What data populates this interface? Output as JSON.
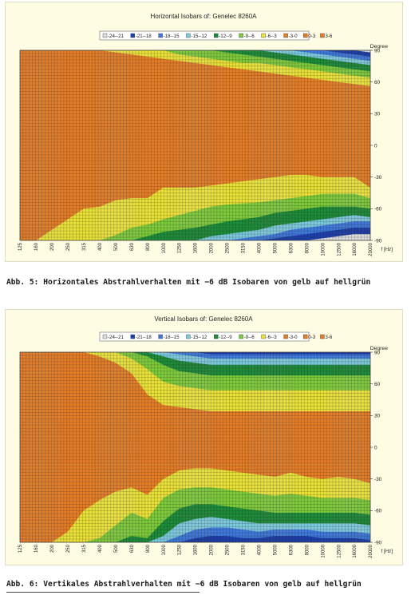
{
  "colors": {
    "s2421": "#dcdcdc",
    "s2118": "#1f3fa8",
    "s1815": "#3f78d8",
    "s1512": "#7ec8dc",
    "s129": "#1f8a3a",
    "s96": "#7ec83e",
    "s63": "#e8e03c",
    "s30": "#e27d2a",
    "s03": "#e27d2a",
    "s36": "#e27d2a",
    "grid": "#222222"
  },
  "legend": [
    {
      "key": "s2421",
      "label": "-24--21"
    },
    {
      "key": "s2118",
      "label": "-21--18"
    },
    {
      "key": "s1815",
      "label": "-18--15"
    },
    {
      "key": "s1512",
      "label": "-15--12"
    },
    {
      "key": "s129",
      "label": "-12--9"
    },
    {
      "key": "s96",
      "label": "-9--6"
    },
    {
      "key": "s63",
      "label": "-6--3"
    },
    {
      "key": "s30",
      "label": "-3-0"
    },
    {
      "key": "s03",
      "label": "0-3"
    },
    {
      "key": "s36",
      "label": "3-6"
    }
  ],
  "captions": {
    "fig5": "Abb. 5: Horizontales Abstrahlverhalten mit −6 dB Isobaren von gelb auf hellgrün",
    "fig6": "Abb. 6: Vertikales Abstrahlverhalten mit −6 dB Isobaren von gelb auf hellgrün"
  },
  "chart_data": [
    {
      "type": "heatmap",
      "title": "Horizontal Isobars of:   Genelec  8260A",
      "xlabel": "f [Hz]",
      "ylabel": "Degree",
      "x_ticks": [
        "125",
        "160",
        "200",
        "250",
        "315",
        "400",
        "500",
        "630",
        "800",
        "1000",
        "1250",
        "1600",
        "2000",
        "2500",
        "3150",
        "4000",
        "5000",
        "6300",
        "8000",
        "10000",
        "12500",
        "16000",
        "20000"
      ],
      "y_ticks": [
        90,
        60,
        30,
        0,
        -30,
        -60,
        -90
      ],
      "ylim": [
        -90,
        90
      ],
      "legend_position": "top",
      "grid": true,
      "x": [
        125,
        160,
        200,
        250,
        315,
        400,
        500,
        630,
        800,
        1000,
        1250,
        1600,
        2000,
        2500,
        3150,
        4000,
        5000,
        6300,
        8000,
        10000,
        12500,
        16000,
        20000
      ],
      "contours_dB": [
        -3,
        -6,
        -9,
        -12,
        -15,
        -18,
        -21
      ],
      "upper_boundaries_deg": [
        [
          90,
          90,
          90,
          90,
          90,
          90,
          88,
          86,
          84,
          82,
          80,
          78,
          76,
          74,
          72,
          70,
          68,
          66,
          64,
          62,
          60,
          58,
          56
        ],
        [
          90,
          90,
          90,
          90,
          90,
          90,
          90,
          90,
          90,
          90,
          86,
          84,
          82,
          80,
          78,
          78,
          76,
          74,
          72,
          70,
          68,
          66,
          64
        ],
        [
          90,
          90,
          90,
          90,
          90,
          90,
          90,
          90,
          90,
          90,
          90,
          90,
          90,
          88,
          86,
          84,
          82,
          80,
          78,
          76,
          74,
          72,
          70
        ],
        [
          90,
          90,
          90,
          90,
          90,
          90,
          90,
          90,
          90,
          90,
          90,
          90,
          90,
          90,
          90,
          90,
          88,
          86,
          84,
          82,
          80,
          78,
          76
        ],
        [
          90,
          90,
          90,
          90,
          90,
          90,
          90,
          90,
          90,
          90,
          90,
          90,
          90,
          90,
          90,
          90,
          90,
          90,
          88,
          86,
          84,
          82,
          80
        ],
        [
          90,
          90,
          90,
          90,
          90,
          90,
          90,
          90,
          90,
          90,
          90,
          90,
          90,
          90,
          90,
          90,
          90,
          90,
          90,
          90,
          88,
          86,
          84
        ],
        [
          90,
          90,
          90,
          90,
          90,
          90,
          90,
          90,
          90,
          90,
          90,
          90,
          90,
          90,
          90,
          90,
          90,
          90,
          90,
          90,
          90,
          90,
          88
        ]
      ],
      "lower_boundaries_deg": [
        [
          -90,
          -90,
          -80,
          -70,
          -60,
          -58,
          -52,
          -50,
          -50,
          -40,
          -40,
          -40,
          -38,
          -36,
          -34,
          -32,
          -30,
          -28,
          -28,
          -30,
          -30,
          -30,
          -40
        ],
        [
          -90,
          -90,
          -90,
          -90,
          -90,
          -90,
          -85,
          -78,
          -75,
          -70,
          -66,
          -62,
          -58,
          -56,
          -55,
          -54,
          -52,
          -50,
          -48,
          -46,
          -46,
          -46,
          -50
        ],
        [
          -90,
          -90,
          -90,
          -90,
          -90,
          -90,
          -90,
          -90,
          -86,
          -82,
          -80,
          -78,
          -75,
          -72,
          -70,
          -68,
          -64,
          -62,
          -60,
          -58,
          -58,
          -58,
          -60
        ],
        [
          -90,
          -90,
          -90,
          -90,
          -90,
          -90,
          -90,
          -90,
          -90,
          -90,
          -90,
          -90,
          -86,
          -84,
          -82,
          -80,
          -76,
          -74,
          -72,
          -70,
          -68,
          -66,
          -68
        ],
        [
          -90,
          -90,
          -90,
          -90,
          -90,
          -90,
          -90,
          -90,
          -90,
          -90,
          -90,
          -90,
          -90,
          -90,
          -88,
          -86,
          -84,
          -80,
          -78,
          -76,
          -74,
          -72,
          -72
        ],
        [
          -90,
          -90,
          -90,
          -90,
          -90,
          -90,
          -90,
          -90,
          -90,
          -90,
          -90,
          -90,
          -90,
          -90,
          -90,
          -90,
          -88,
          -86,
          -84,
          -82,
          -80,
          -78,
          -78
        ],
        [
          -90,
          -90,
          -90,
          -90,
          -90,
          -90,
          -90,
          -90,
          -90,
          -90,
          -90,
          -90,
          -90,
          -90,
          -90,
          -90,
          -90,
          -90,
          -90,
          -88,
          -86,
          -84,
          -84
        ]
      ]
    },
    {
      "type": "heatmap",
      "title": "Vertical Isobars of:   Genelec  8260A",
      "xlabel": "f [Hz]",
      "ylabel": "Degree",
      "x_ticks": [
        "125",
        "160",
        "200",
        "250",
        "315",
        "400",
        "500",
        "630",
        "800",
        "1000",
        "1250",
        "1600",
        "2000",
        "2500",
        "3150",
        "4000",
        "5000",
        "6300",
        "8000",
        "10000",
        "12500",
        "16000",
        "20000"
      ],
      "y_ticks": [
        90,
        60,
        30,
        0,
        -30,
        -60,
        -90
      ],
      "ylim": [
        -90,
        90
      ],
      "legend_position": "top",
      "grid": true,
      "x": [
        125,
        160,
        200,
        250,
        315,
        400,
        500,
        630,
        800,
        1000,
        1250,
        1600,
        2000,
        2500,
        3150,
        4000,
        5000,
        6300,
        8000,
        10000,
        12500,
        16000,
        20000
      ],
      "contours_dB": [
        -3,
        -6,
        -9,
        -12,
        -15,
        -18,
        -21
      ],
      "upper_boundaries_deg": [
        [
          90,
          90,
          90,
          90,
          90,
          86,
          80,
          70,
          50,
          40,
          38,
          36,
          34,
          34,
          34,
          34,
          34,
          34,
          34,
          34,
          34,
          34,
          34
        ],
        [
          90,
          90,
          90,
          90,
          90,
          90,
          90,
          84,
          74,
          62,
          58,
          56,
          54,
          54,
          54,
          54,
          54,
          54,
          54,
          54,
          54,
          54,
          54
        ],
        [
          90,
          90,
          90,
          90,
          90,
          90,
          90,
          90,
          86,
          78,
          72,
          70,
          68,
          68,
          68,
          68,
          68,
          68,
          68,
          68,
          68,
          68,
          68
        ],
        [
          90,
          90,
          90,
          90,
          90,
          90,
          90,
          90,
          90,
          86,
          82,
          80,
          78,
          78,
          78,
          78,
          78,
          78,
          78,
          78,
          78,
          78,
          78
        ],
        [
          90,
          90,
          90,
          90,
          90,
          90,
          90,
          90,
          90,
          90,
          88,
          86,
          84,
          84,
          84,
          84,
          84,
          84,
          84,
          84,
          84,
          84,
          84
        ],
        [
          90,
          90,
          90,
          90,
          90,
          90,
          90,
          90,
          90,
          90,
          90,
          90,
          88,
          88,
          88,
          88,
          88,
          88,
          88,
          88,
          88,
          88,
          88
        ],
        [
          90,
          90,
          90,
          90,
          90,
          90,
          90,
          90,
          90,
          90,
          90,
          90,
          90,
          90,
          90,
          90,
          90,
          90,
          90,
          90,
          90,
          90,
          90
        ]
      ],
      "lower_boundaries_deg": [
        [
          -90,
          -90,
          -90,
          -80,
          -60,
          -50,
          -42,
          -38,
          -45,
          -30,
          -22,
          -20,
          -20,
          -22,
          -24,
          -26,
          -28,
          -24,
          -28,
          -30,
          -28,
          -30,
          -34
        ],
        [
          -90,
          -90,
          -90,
          -90,
          -90,
          -86,
          -74,
          -62,
          -68,
          -48,
          -40,
          -38,
          -38,
          -40,
          -42,
          -44,
          -46,
          -44,
          -46,
          -48,
          -48,
          -48,
          -50
        ],
        [
          -90,
          -90,
          -90,
          -90,
          -90,
          -90,
          -90,
          -84,
          -86,
          -70,
          -58,
          -54,
          -54,
          -56,
          -58,
          -60,
          -62,
          -62,
          -62,
          -62,
          -62,
          -62,
          -64
        ],
        [
          -90,
          -90,
          -90,
          -90,
          -90,
          -90,
          -90,
          -90,
          -90,
          -84,
          -72,
          -68,
          -66,
          -68,
          -70,
          -72,
          -72,
          -72,
          -72,
          -72,
          -72,
          -72,
          -74
        ],
        [
          -90,
          -90,
          -90,
          -90,
          -90,
          -90,
          -90,
          -90,
          -90,
          -90,
          -84,
          -78,
          -76,
          -76,
          -78,
          -80,
          -78,
          -78,
          -78,
          -80,
          -80,
          -80,
          -82
        ],
        [
          -90,
          -90,
          -90,
          -90,
          -90,
          -90,
          -90,
          -90,
          -90,
          -90,
          -90,
          -86,
          -84,
          -84,
          -86,
          -86,
          -84,
          -84,
          -84,
          -86,
          -86,
          -86,
          -88
        ],
        [
          -90,
          -90,
          -90,
          -90,
          -90,
          -90,
          -90,
          -90,
          -90,
          -90,
          -90,
          -90,
          -90,
          -90,
          -90,
          -90,
          -90,
          -90,
          -90,
          -90,
          -90,
          -90,
          -90
        ]
      ]
    }
  ]
}
